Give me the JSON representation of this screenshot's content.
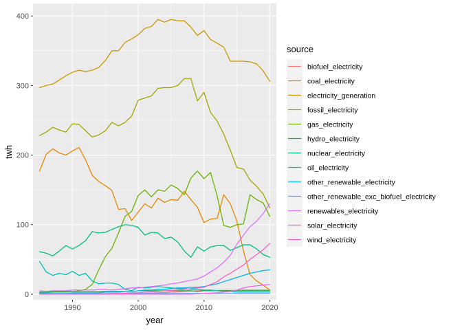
{
  "chart_data": {
    "type": "line",
    "xlabel": "year",
    "ylabel": "twh",
    "xlim": [
      1984,
      2021
    ],
    "ylim": [
      -8,
      418
    ],
    "x_ticks": [
      1990,
      2000,
      2010,
      2020
    ],
    "y_ticks": [
      0,
      100,
      200,
      300,
      400
    ],
    "grid": true,
    "legend": {
      "title": "source",
      "position": "right"
    },
    "x": [
      1985,
      1986,
      1987,
      1988,
      1989,
      1990,
      1991,
      1992,
      1993,
      1994,
      1995,
      1996,
      1997,
      1998,
      1999,
      2000,
      2001,
      2002,
      2003,
      2004,
      2005,
      2006,
      2007,
      2008,
      2009,
      2010,
      2011,
      2012,
      2013,
      2014,
      2015,
      2016,
      2017,
      2018,
      2019,
      2020
    ],
    "series": [
      {
        "name": "biofuel_electricity",
        "color": "#F8766D",
        "values": [
          0,
          0,
          0,
          0,
          0,
          0,
          0,
          0,
          0,
          0,
          0,
          0,
          0,
          0,
          0,
          0.5,
          1,
          1.5,
          2,
          2.5,
          3,
          3.5,
          4,
          4.5,
          5,
          5.5,
          5.5,
          5.5,
          5.5,
          5.5,
          5.5,
          6,
          6,
          6,
          6,
          6
        ]
      },
      {
        "name": "coal_electricity",
        "color": "#E58700",
        "values": [
          177,
          201,
          209,
          203,
          200,
          206,
          211,
          193,
          171,
          162,
          156,
          149,
          122,
          123,
          106,
          118,
          130,
          124,
          138,
          132,
          136,
          135,
          148,
          136,
          125,
          103,
          108,
          109,
          143,
          130,
          105,
          62,
          28,
          19,
          13,
          6
        ]
      },
      {
        "name": "electricity_generation",
        "color": "#C99800",
        "values": [
          297,
          300,
          302,
          308,
          314,
          319,
          322,
          320,
          322,
          326,
          336,
          350,
          350,
          362,
          367,
          373,
          382,
          385,
          395,
          391,
          395,
          393,
          393,
          384,
          372,
          379,
          366,
          361,
          355,
          335,
          335,
          335,
          334,
          331,
          321,
          306
        ]
      },
      {
        "name": "fossil_electricity",
        "color": "#A3A500",
        "values": [
          228,
          233,
          240,
          236,
          233,
          245,
          244,
          235,
          226,
          229,
          235,
          247,
          242,
          247,
          256,
          279,
          282,
          285,
          296,
          297,
          297,
          300,
          310,
          310,
          278,
          290,
          261,
          249,
          230,
          207,
          182,
          180,
          164,
          155,
          144,
          124
        ]
      },
      {
        "name": "gas_electricity",
        "color": "#6BB100",
        "values": [
          2,
          2,
          3,
          3,
          3,
          4,
          5,
          7,
          14,
          35,
          54,
          66,
          88,
          112,
          119,
          142,
          150,
          140,
          150,
          148,
          157,
          152,
          143,
          167,
          177,
          166,
          175,
          141,
          99,
          96,
          100,
          101,
          143,
          136,
          131,
          112
        ]
      },
      {
        "name": "hydro_electricity",
        "color": "#00BA38",
        "values": [
          3,
          3,
          4,
          4,
          4,
          4,
          4,
          4,
          4,
          4,
          4,
          4,
          4,
          4,
          4,
          5,
          5,
          5,
          5,
          5,
          5,
          5,
          5,
          5,
          4,
          5,
          5,
          5,
          5,
          5,
          5,
          5,
          5,
          5,
          5,
          5
        ]
      },
      {
        "name": "nuclear_electricity",
        "color": "#00BF7D",
        "values": [
          61,
          59,
          55,
          62,
          70,
          65,
          70,
          77,
          90,
          88,
          89,
          93,
          97,
          100,
          99,
          96,
          85,
          89,
          88,
          80,
          82,
          75,
          62,
          53,
          68,
          62,
          68,
          70,
          70,
          63,
          67,
          71,
          71,
          65,
          57,
          53
        ]
      },
      {
        "name": "oil_electricity",
        "color": "#00C0B8",
        "values": [
          47,
          32,
          27,
          30,
          28,
          33,
          27,
          30,
          19,
          15,
          16,
          16,
          14,
          7,
          5,
          10,
          9,
          10,
          11,
          10,
          9,
          8,
          8,
          7,
          7,
          6,
          6,
          5,
          4,
          4,
          3,
          3,
          3,
          3,
          3,
          3
        ]
      },
      {
        "name": "other_renewable_electricity",
        "color": "#00B4EF",
        "values": [
          1,
          1,
          1,
          1,
          1,
          2,
          2,
          2,
          2,
          2,
          3,
          3,
          3,
          4,
          4,
          5,
          6,
          6,
          7,
          7,
          8,
          9,
          9,
          10,
          10,
          11,
          13,
          15,
          18,
          21,
          24,
          27,
          30,
          32,
          34,
          35
        ]
      },
      {
        "name": "other_renewable_exc_biofuel_electricity",
        "color": "#619CFF",
        "values": [
          1,
          1,
          1,
          1,
          1,
          1,
          1,
          1,
          1,
          1,
          1,
          1,
          1,
          1,
          1,
          1,
          1,
          1,
          1,
          1,
          1,
          1,
          1,
          1,
          1,
          1,
          1,
          1,
          1,
          1,
          1,
          1,
          1,
          1,
          1,
          1
        ]
      },
      {
        "name": "renewables_electricity",
        "color": "#DB72FB",
        "values": [
          5,
          4,
          5,
          5,
          5,
          6,
          6,
          6,
          6,
          7,
          7,
          6,
          7,
          8,
          9,
          9,
          10,
          11,
          12,
          13,
          15,
          16,
          18,
          20,
          22,
          26,
          32,
          38,
          46,
          56,
          72,
          85,
          97,
          105,
          116,
          130
        ]
      },
      {
        "name": "solar_electricity",
        "color": "#F564E3",
        "values": [
          0,
          0,
          0,
          0,
          0,
          0,
          0,
          0,
          0,
          0,
          0,
          0,
          0,
          0,
          0,
          0,
          0,
          0,
          0,
          0,
          0,
          0,
          0,
          0,
          0.5,
          1,
          1.5,
          2,
          3,
          4,
          6,
          9,
          11,
          12,
          13,
          14
        ]
      },
      {
        "name": "wind_electricity",
        "color": "#FF61C3",
        "values": [
          0,
          0,
          0,
          0,
          0,
          0,
          0,
          0,
          0,
          0.5,
          0.5,
          1,
          1,
          1.5,
          2,
          2,
          3,
          3.5,
          4,
          5,
          5.5,
          6,
          7,
          8,
          9,
          10,
          14,
          18,
          25,
          30,
          36,
          42,
          50,
          57,
          64,
          73
        ]
      }
    ]
  }
}
